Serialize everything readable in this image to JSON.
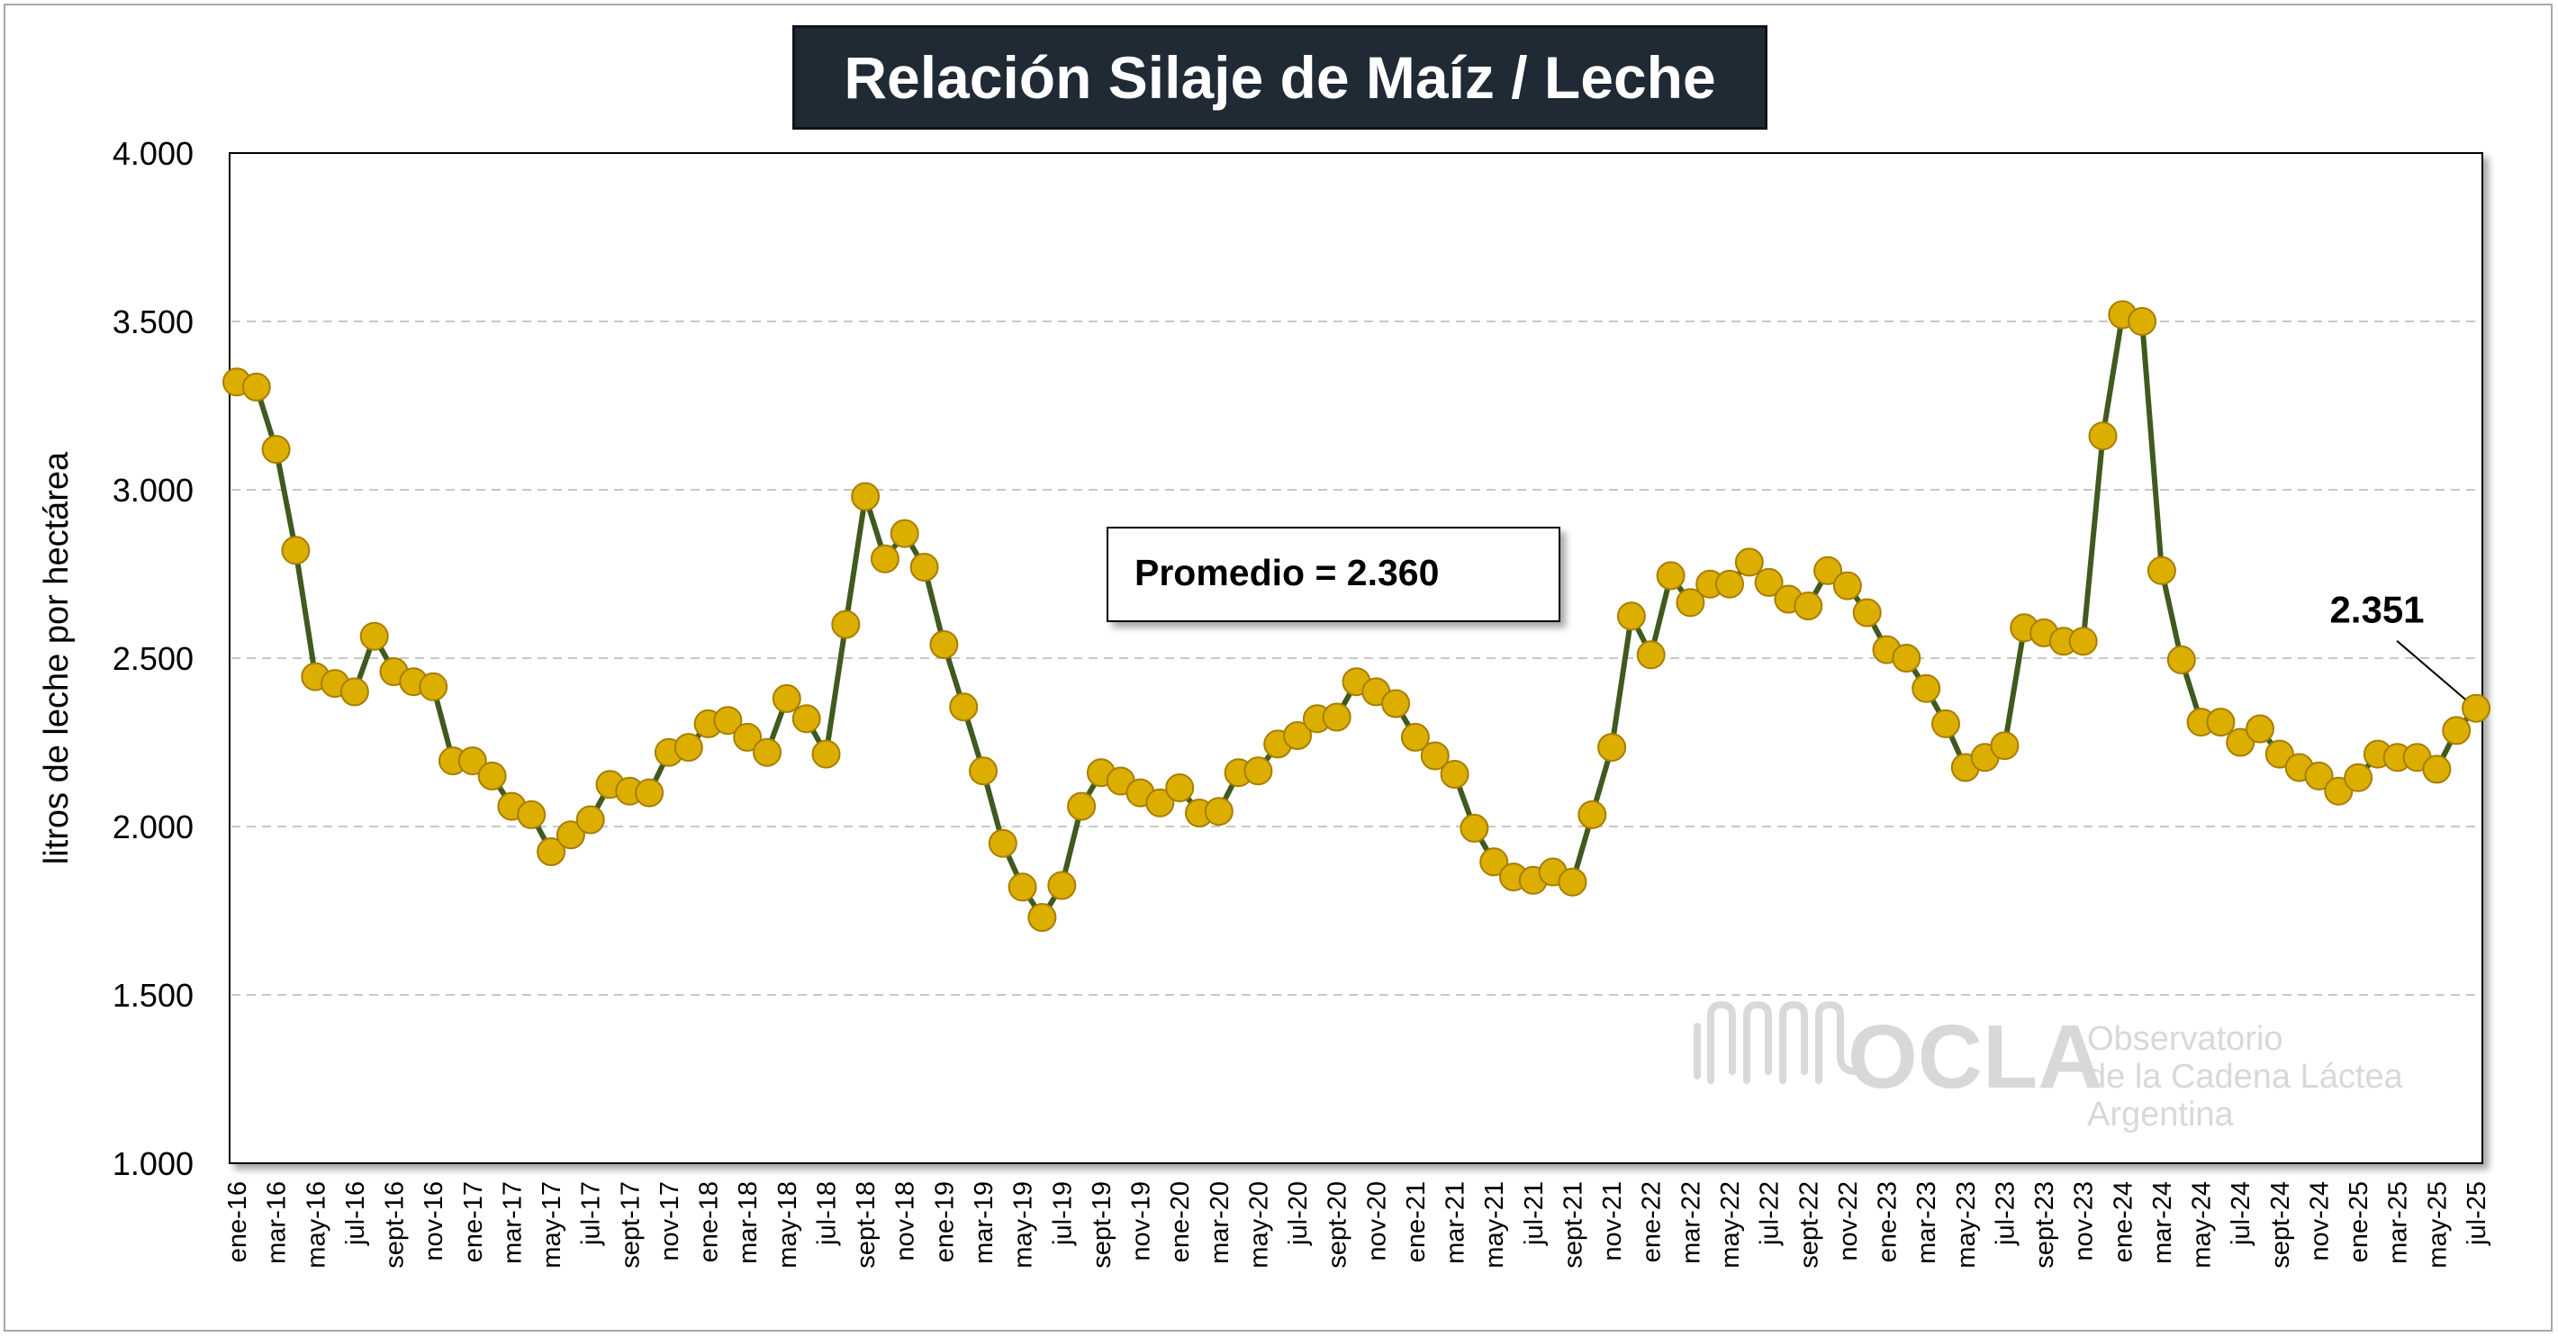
{
  "chart_data": {
    "type": "line",
    "title": "Relación Silaje de Maíz / Leche",
    "xlabel": "",
    "ylabel": "litros de leche por hectárea",
    "ylim": [
      1000,
      4000
    ],
    "y_ticks": [
      "1.000",
      "1.500",
      "2.000",
      "2.500",
      "3.000",
      "3.500",
      "4.000"
    ],
    "grid": "horizontal dashed",
    "x_tick_labels": [
      "ene-16",
      "mar-16",
      "may-16",
      "jul-16",
      "sept-16",
      "nov-16",
      "ene-17",
      "mar-17",
      "may-17",
      "jul-17",
      "sept-17",
      "nov-17",
      "ene-18",
      "mar-18",
      "may-18",
      "jul-18",
      "sept-18",
      "nov-18",
      "ene-19",
      "mar-19",
      "may-19",
      "jul-19",
      "sept-19",
      "nov-19",
      "ene-20",
      "mar-20",
      "may-20",
      "jul-20",
      "sept-20",
      "nov-20",
      "ene-21",
      "mar-21",
      "may-21",
      "jul-21",
      "sept-21",
      "nov-21",
      "ene-22",
      "mar-22",
      "may-22",
      "jul-22",
      "sept-22",
      "nov-22",
      "ene-23",
      "mar-23",
      "may-23",
      "jul-23",
      "sept-23",
      "nov-23",
      "ene-24",
      "mar-24",
      "may-24",
      "jul-24",
      "sept-24",
      "nov-24",
      "ene-25",
      "mar-25",
      "may-25",
      "jul-25"
    ],
    "series": [
      {
        "name": "",
        "values": [
          3320,
          3305,
          3120,
          2820,
          2445,
          2425,
          2400,
          2565,
          2460,
          2430,
          2415,
          2195,
          2195,
          2150,
          2060,
          2035,
          1925,
          1975,
          2020,
          2125,
          2105,
          2100,
          2220,
          2235,
          2305,
          2315,
          2265,
          2220,
          2380,
          2320,
          2215,
          2600,
          2980,
          2795,
          2870,
          2770,
          2540,
          2355,
          2165,
          1950,
          1820,
          1730,
          1825,
          2060,
          2160,
          2135,
          2100,
          2070,
          2115,
          2040,
          2045,
          2160,
          2165,
          2245,
          2270,
          2320,
          2325,
          2430,
          2400,
          2365,
          2265,
          2210,
          2155,
          1995,
          1895,
          1850,
          1840,
          1865,
          1835,
          2035,
          2235,
          2625,
          2510,
          2745,
          2665,
          2720,
          2720,
          2785,
          2725,
          2675,
          2655,
          2760,
          2715,
          2635,
          2525,
          2500,
          2410,
          2305,
          2175,
          2205,
          2240,
          2590,
          2575,
          2550,
          2550,
          3160,
          3520,
          3500,
          2760,
          2495,
          2310,
          2310,
          2250,
          2290,
          2215,
          2175,
          2150,
          2105,
          2145,
          2215,
          2205,
          2205,
          2170,
          2285,
          2351
        ]
      }
    ],
    "annotations": {
      "average_label": "Promedio = 2.360",
      "last_value_label": "2.351"
    },
    "colors": {
      "line": "#3f5a1f",
      "marker_fill": "#dcae00",
      "marker_stroke": "#a77e00",
      "title_bg": "#1f2a35",
      "grid": "#c8c8c8"
    }
  },
  "watermark": {
    "logo_text": "OCLA",
    "line1": "Observatorio",
    "line2": "de la Cadena Láctea",
    "line3": "Argentina"
  }
}
